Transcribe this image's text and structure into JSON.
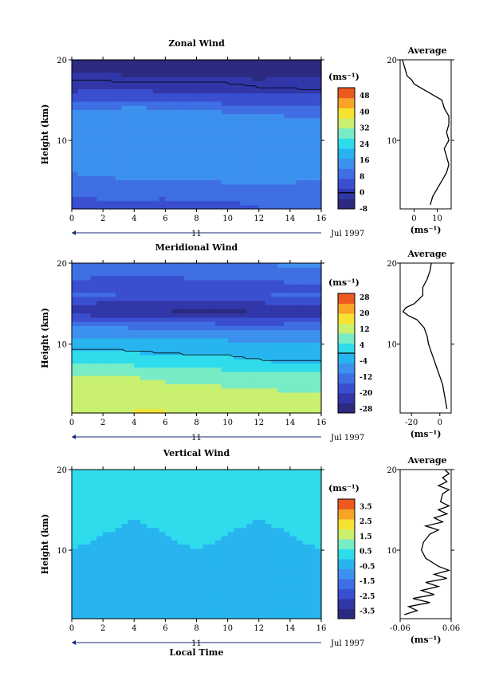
{
  "date_label": "Jul 1997",
  "day_label": "11",
  "xaxis_label": "Local Time",
  "units_label": "(ms⁻¹)",
  "chart_data": [
    {
      "type": "heatmap",
      "title": "Zonal Wind",
      "ylabel": "Height (km)",
      "xlabel": "",
      "x_ticks": [
        "0",
        "2",
        "4",
        "6",
        "8",
        "10",
        "12",
        "14",
        "16"
      ],
      "y_ticks": [
        "20",
        "10"
      ],
      "xlim": [
        0,
        16
      ],
      "ylim": [
        1.5,
        20
      ],
      "x": [
        0,
        2,
        4,
        6,
        8,
        10,
        12,
        14,
        16
      ],
      "y": [
        2,
        4,
        6,
        8,
        10,
        12,
        14,
        15,
        16,
        17,
        18,
        19,
        20
      ],
      "z": [
        [
          5,
          6,
          6,
          5,
          6,
          6,
          7,
          7,
          7
        ],
        [
          8,
          9,
          9,
          10,
          10,
          11,
          11,
          11,
          10
        ],
        [
          12,
          13,
          14,
          14,
          13,
          14,
          15,
          14,
          13
        ],
        [
          13,
          14,
          15,
          15,
          14,
          14,
          15,
          14,
          13
        ],
        [
          14,
          14,
          15,
          14,
          14,
          15,
          14,
          14,
          13
        ],
        [
          15,
          15,
          16,
          16,
          15,
          15,
          14,
          14,
          14
        ],
        [
          12,
          12,
          13,
          12,
          12,
          11,
          11,
          10,
          10
        ],
        [
          5,
          6,
          6,
          5,
          5,
          4,
          4,
          4,
          4
        ],
        [
          2,
          3,
          3,
          2,
          2,
          2,
          1,
          1,
          1
        ],
        [
          1,
          1,
          0,
          0,
          1,
          0,
          -1,
          -2,
          -3
        ],
        [
          -2,
          -2,
          -3,
          -3,
          -4,
          -4,
          -4,
          -3,
          -3
        ],
        [
          -4,
          -4,
          -5,
          -5,
          -5,
          -6,
          -5,
          -5,
          -4
        ],
        [
          -5,
          -5,
          -6,
          -6,
          -6,
          -6,
          -6,
          -6,
          -5
        ]
      ],
      "zero_contour": true,
      "colorbar": {
        "units": "(ms⁻¹)",
        "min": -8,
        "max": 52,
        "ticks": [
          "48",
          "40",
          "32",
          "24",
          "16",
          "8",
          "0",
          "-8"
        ],
        "zero_line_at": 0
      },
      "average_profile": {
        "title": "Average",
        "xlabel": "(ms⁻¹)",
        "x_ticks": [
          "0",
          "10"
        ],
        "xlim": [
          -6,
          16
        ],
        "y_ticks": [
          "20",
          "10"
        ],
        "height": [
          2,
          3,
          4,
          5,
          6,
          7,
          8,
          9,
          10,
          11,
          12,
          13,
          14,
          15,
          16,
          16.5,
          17,
          17.5,
          18,
          19,
          20
        ],
        "value": [
          7,
          8,
          10,
          12,
          14,
          15,
          14,
          13,
          15,
          14,
          15,
          15,
          13,
          12,
          6,
          3,
          0,
          -1,
          -3,
          -4,
          -5
        ]
      }
    },
    {
      "type": "heatmap",
      "title": "Meridional Wind",
      "ylabel": "Height (km)",
      "xlabel": "",
      "x_ticks": [
        "0",
        "2",
        "4",
        "6",
        "8",
        "10",
        "12",
        "14",
        "16"
      ],
      "y_ticks": [
        "20",
        "10"
      ],
      "xlim": [
        0,
        16
      ],
      "ylim": [
        1.5,
        20
      ],
      "x": [
        0,
        2,
        4,
        6,
        8,
        10,
        12,
        14,
        16
      ],
      "y": [
        2,
        4,
        6,
        8,
        10,
        12,
        13,
        14,
        15,
        16,
        17,
        18,
        19,
        20
      ],
      "z": [
        [
          14,
          14,
          15,
          15,
          14,
          13,
          13,
          12,
          11
        ],
        [
          12,
          13,
          13,
          12,
          12,
          11,
          11,
          10,
          10
        ],
        [
          10,
          11,
          10,
          9,
          9,
          8,
          8,
          7,
          7
        ],
        [
          3,
          4,
          3,
          2,
          1,
          1,
          0,
          -1,
          -1
        ],
        [
          -2,
          -2,
          -3,
          -3,
          -3,
          -3,
          -4,
          -4,
          -4
        ],
        [
          -8,
          -9,
          -10,
          -10,
          -10,
          -11,
          -11,
          -11,
          -10
        ],
        [
          -16,
          -17,
          -17,
          -18,
          -18,
          -19,
          -19,
          -18,
          -17
        ],
        [
          -22,
          -23,
          -24,
          -25,
          -26,
          -26,
          -25,
          -24,
          -23
        ],
        [
          -20,
          -21,
          -21,
          -22,
          -22,
          -22,
          -21,
          -20,
          -19
        ],
        [
          -14,
          -14,
          -15,
          -15,
          -16,
          -16,
          -15,
          -14,
          -13
        ],
        [
          -17,
          -18,
          -18,
          -19,
          -19,
          -18,
          -18,
          -17,
          -17
        ],
        [
          -15,
          -16,
          -16,
          -16,
          -15,
          -15,
          -14,
          -14,
          -13
        ],
        [
          -12,
          -13,
          -14,
          -14,
          -13,
          -12,
          -12,
          -11,
          -11
        ],
        [
          -10,
          -11,
          -11,
          -12,
          -11,
          -10,
          -10,
          -9,
          -9
        ]
      ],
      "zero_contour": true,
      "colorbar": {
        "units": "(ms⁻¹)",
        "min": -30,
        "max": 30,
        "ticks": [
          "28",
          "20",
          "12",
          "4",
          "-4",
          "-12",
          "-20",
          "-28"
        ],
        "zero_line_at": 0
      },
      "average_profile": {
        "title": "Average",
        "xlabel": "(ms⁻¹)",
        "x_ticks": [
          "-20",
          "0"
        ],
        "xlim": [
          -28,
          8
        ],
        "y_ticks": [
          "20",
          "10"
        ],
        "height": [
          2,
          3,
          4,
          5,
          6,
          7,
          8,
          9,
          10,
          11,
          12,
          13,
          13.5,
          14,
          14.5,
          15,
          16,
          17,
          18,
          19,
          20
        ],
        "value": [
          5,
          4,
          3,
          2,
          0,
          -2,
          -4,
          -6,
          -8,
          -9,
          -11,
          -16,
          -22,
          -26,
          -24,
          -18,
          -12,
          -12,
          -9,
          -7,
          -6
        ]
      }
    },
    {
      "type": "heatmap",
      "title": "Vertical Wind",
      "ylabel": "Height (km)",
      "xlabel": "Local Time",
      "x_ticks": [
        "0",
        "2",
        "4",
        "6",
        "8",
        "10",
        "12",
        "14",
        "16"
      ],
      "y_ticks": [
        "20",
        "10"
      ],
      "xlim": [
        0,
        16
      ],
      "ylim": [
        1.5,
        20
      ],
      "x": [
        0,
        2,
        4,
        6,
        8,
        10,
        12,
        14,
        16
      ],
      "y": [
        2,
        4,
        6,
        8,
        10,
        12,
        14,
        16,
        18,
        20
      ],
      "z": [
        [
          -0.3,
          -0.4,
          -0.2,
          -0.3,
          -0.5,
          -0.3,
          -0.2,
          -0.3,
          -0.4
        ],
        [
          -0.2,
          -0.3,
          -0.4,
          -0.2,
          -0.3,
          -0.6,
          -0.3,
          -0.2,
          -0.3
        ],
        [
          -0.1,
          -0.2,
          -0.3,
          0.0,
          -0.2,
          -0.4,
          -0.3,
          -0.1,
          -0.2
        ],
        [
          -0.2,
          -0.1,
          -0.3,
          -0.4,
          -0.1,
          -0.2,
          -0.4,
          -0.2,
          -0.1
        ],
        [
          0.0,
          -0.1,
          -0.2,
          -0.1,
          0.0,
          -0.1,
          -0.2,
          -0.1,
          0.0
        ],
        [
          0.1,
          0.0,
          -0.1,
          0.0,
          0.1,
          0.0,
          -0.1,
          0.0,
          0.1
        ],
        [
          0.1,
          0.2,
          0.0,
          0.1,
          0.2,
          0.1,
          0.0,
          0.1,
          0.2
        ],
        [
          0.2,
          0.1,
          0.1,
          0.2,
          0.1,
          0.2,
          0.1,
          0.1,
          0.1
        ],
        [
          0.1,
          0.2,
          0.2,
          0.1,
          0.2,
          0.1,
          0.2,
          0.2,
          0.1
        ],
        [
          0.2,
          0.1,
          0.2,
          0.2,
          0.1,
          0.2,
          0.1,
          0.2,
          0.2
        ]
      ],
      "zero_contour": false,
      "colorbar": {
        "units": "(ms⁻¹)",
        "min": -4,
        "max": 4,
        "ticks": [
          "3.5",
          "2.5",
          "1.5",
          "0.5",
          "-0.5",
          "-1.5",
          "-2.5",
          "-3.5"
        ],
        "zero_line_at": null
      },
      "average_profile": {
        "title": "Average",
        "xlabel": "(ms⁻¹)",
        "x_ticks": [
          "-0.06",
          "0.06"
        ],
        "xlim": [
          -0.06,
          0.06
        ],
        "y_ticks": [
          "20",
          "10"
        ],
        "height": [
          2,
          2.5,
          3,
          3.5,
          4,
          4.5,
          5,
          5.5,
          6,
          6.5,
          7,
          7.5,
          8,
          9,
          10,
          11,
          12,
          12.5,
          13,
          13.5,
          14,
          14.5,
          15,
          15.5,
          16,
          17,
          17.5,
          18,
          18.5,
          19,
          19.5,
          20
        ],
        "value": [
          -0.05,
          -0.02,
          -0.04,
          0.01,
          -0.03,
          0.02,
          -0.01,
          0.03,
          0.0,
          0.05,
          0.02,
          0.055,
          0.03,
          0.0,
          -0.01,
          -0.005,
          0.01,
          0.03,
          0.0,
          0.04,
          0.02,
          0.05,
          0.03,
          0.055,
          0.035,
          0.04,
          0.055,
          0.03,
          0.05,
          0.04,
          0.055,
          0.045
        ]
      }
    }
  ]
}
